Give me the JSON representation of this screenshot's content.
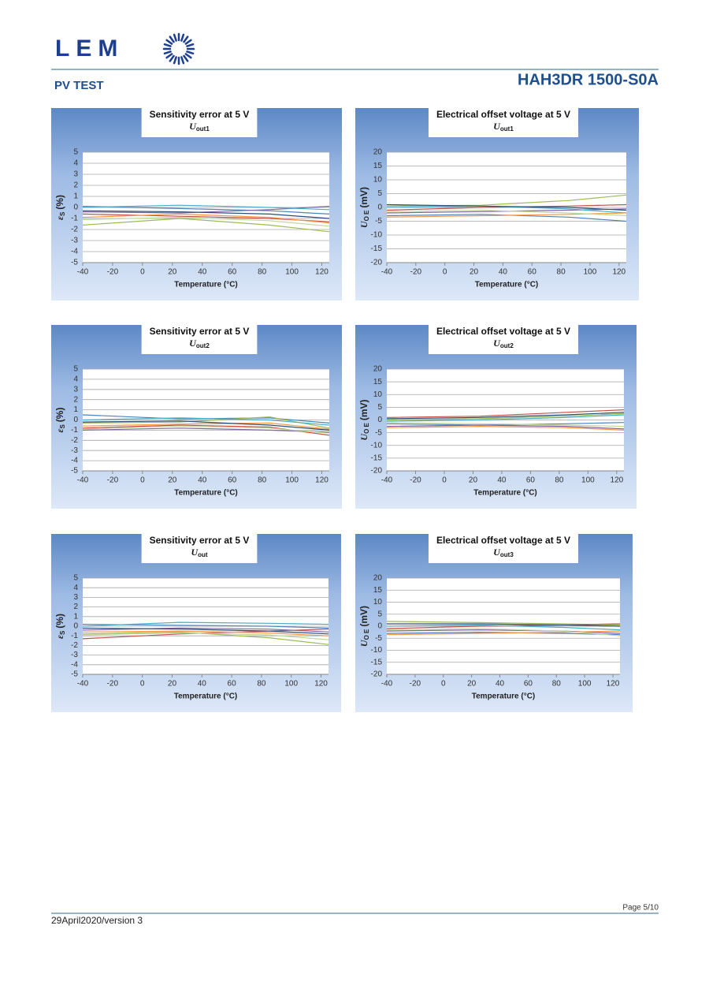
{
  "header": {
    "logo": "LEM",
    "section": "PV TEST",
    "product": "HAH3DR 1500-S0A"
  },
  "chart_data": [
    {
      "type": "line",
      "title": "Sensitivity error at 5 V",
      "subtitle": "U",
      "subtitle_sub": "out1",
      "ylabel": {
        "symbol": "ε",
        "sub": "S",
        "unit": "(%)"
      },
      "xlabel": "Temperature (°C)",
      "x": [
        -40,
        25,
        85,
        125
      ],
      "xlim": [
        -40,
        125
      ],
      "xticks": [
        -40,
        -20,
        0,
        20,
        40,
        60,
        80,
        100,
        120
      ],
      "ylim": [
        -5,
        5
      ],
      "yticks": [
        -5,
        -4,
        -3,
        -2,
        -1,
        0,
        1,
        2,
        3,
        4,
        5
      ],
      "grid": true,
      "series": [
        {
          "color": "#4f81bd",
          "values": [
            0.1,
            -0.1,
            -0.3,
            -0.6
          ]
        },
        {
          "color": "#c0504d",
          "values": [
            -0.6,
            -0.8,
            -1.0,
            -1.3
          ]
        },
        {
          "color": "#9bbb59",
          "values": [
            -1.6,
            -1.0,
            -1.6,
            -2.2
          ]
        },
        {
          "color": "#8064a2",
          "values": [
            -0.4,
            -0.5,
            -0.2,
            0.1
          ]
        },
        {
          "color": "#4bacc6",
          "values": [
            0.0,
            0.2,
            0.0,
            -0.2
          ]
        },
        {
          "color": "#f79646",
          "values": [
            -0.9,
            -0.6,
            -0.9,
            -1.4
          ]
        },
        {
          "color": "#2c4d75",
          "values": [
            -0.3,
            -0.4,
            -0.6,
            -1.0
          ]
        },
        {
          "color": "#c3d69b",
          "values": [
            -1.1,
            -0.9,
            -1.2,
            -1.7
          ]
        }
      ]
    },
    {
      "type": "line",
      "title": "Electrical offset voltage at 5 V",
      "subtitle": "U",
      "subtitle_sub": "out1",
      "ylabel": {
        "symbol": "U",
        "sub": "O E",
        "unit": "(mV)"
      },
      "xlabel": "Temperature (°C)",
      "x": [
        -40,
        25,
        85,
        125
      ],
      "xlim": [
        -40,
        125
      ],
      "xticks": [
        -40,
        -20,
        0,
        20,
        40,
        60,
        80,
        100,
        120
      ],
      "ylim": [
        -20,
        20
      ],
      "yticks": [
        -20,
        -15,
        -10,
        -5,
        0,
        5,
        10,
        15,
        20
      ],
      "grid": true,
      "series": [
        {
          "color": "#9bbb59",
          "values": [
            0.5,
            0.8,
            2.5,
            4.5
          ]
        },
        {
          "color": "#4f81bd",
          "values": [
            -3,
            -2.5,
            -3.5,
            -5
          ]
        },
        {
          "color": "#c0504d",
          "values": [
            -1,
            0,
            0.5,
            1
          ]
        },
        {
          "color": "#8064a2",
          "values": [
            -2,
            -1.5,
            -1,
            -0.5
          ]
        },
        {
          "color": "#4bacc6",
          "values": [
            0,
            0.5,
            -0.5,
            -2
          ]
        },
        {
          "color": "#f79646",
          "values": [
            -3.5,
            -3,
            -2.5,
            -2
          ]
        },
        {
          "color": "#2c4d75",
          "values": [
            1,
            0.5,
            0,
            -1
          ]
        },
        {
          "color": "#c3d69b",
          "values": [
            -1.5,
            -1,
            -2,
            -3
          ]
        }
      ]
    },
    {
      "type": "line",
      "title": "Sensitivity error at 5 V",
      "subtitle": "U",
      "subtitle_sub": "out2",
      "ylabel": {
        "symbol": "ε",
        "sub": "S",
        "unit": "(%)"
      },
      "xlabel": "Temperature (°C)",
      "x": [
        -40,
        25,
        85,
        125
      ],
      "xlim": [
        -40,
        125
      ],
      "xticks": [
        -40,
        -20,
        0,
        20,
        40,
        60,
        80,
        100,
        120
      ],
      "ylim": [
        -5,
        5
      ],
      "yticks": [
        -5,
        -4,
        -3,
        -2,
        -1,
        0,
        1,
        2,
        3,
        4,
        5
      ],
      "grid": true,
      "series": [
        {
          "color": "#4f81bd",
          "values": [
            0.5,
            0.1,
            0.2,
            -0.3
          ]
        },
        {
          "color": "#c0504d",
          "values": [
            -0.8,
            -0.5,
            -0.7,
            -1.5
          ]
        },
        {
          "color": "#9bbb59",
          "values": [
            -0.3,
            -0.2,
            0.3,
            -0.8
          ]
        },
        {
          "color": "#8064a2",
          "values": [
            -1.0,
            -0.8,
            -1.0,
            -1.2
          ]
        },
        {
          "color": "#4bacc6",
          "values": [
            0,
            0.2,
            0,
            -0.5
          ]
        },
        {
          "color": "#f79646",
          "values": [
            -0.6,
            -0.4,
            -0.3,
            -0.9
          ]
        },
        {
          "color": "#2c4d75",
          "values": [
            -0.2,
            -0.1,
            -0.5,
            -1.0
          ]
        },
        {
          "color": "#c3d69b",
          "values": [
            -0.9,
            -0.6,
            -0.8,
            -1.3
          ]
        }
      ]
    },
    {
      "type": "line",
      "title": "Electrical offset voltage at 5 V",
      "subtitle": "U",
      "subtitle_sub": "out2",
      "ylabel": {
        "symbol": "U",
        "sub": "O E",
        "unit": "(mV)"
      },
      "xlabel": "Temperature (°C)",
      "x": [
        -40,
        25,
        85,
        125
      ],
      "xlim": [
        -40,
        125
      ],
      "xticks": [
        -40,
        -20,
        0,
        20,
        40,
        60,
        80,
        100,
        120
      ],
      "ylim": [
        -20,
        20
      ],
      "yticks": [
        -20,
        -15,
        -10,
        -5,
        0,
        5,
        10,
        15,
        20
      ],
      "grid": true,
      "series": [
        {
          "color": "#c0504d",
          "values": [
            1,
            1.5,
            3,
            4
          ]
        },
        {
          "color": "#4f81bd",
          "values": [
            -1.5,
            -2,
            -1.5,
            -1
          ]
        },
        {
          "color": "#9bbb59",
          "values": [
            0,
            0.5,
            1.5,
            2.5
          ]
        },
        {
          "color": "#8064a2",
          "values": [
            -2.5,
            -2,
            -2.5,
            -3.5
          ]
        },
        {
          "color": "#4bacc6",
          "values": [
            -0.5,
            0,
            1,
            2
          ]
        },
        {
          "color": "#f79646",
          "values": [
            -3,
            -2.5,
            -3,
            -4
          ]
        },
        {
          "color": "#2c4d75",
          "values": [
            0.5,
            1,
            2,
            3
          ]
        },
        {
          "color": "#c3d69b",
          "values": [
            -1,
            -1.5,
            -2,
            -2.5
          ]
        }
      ]
    },
    {
      "type": "line",
      "title": "Sensitivity error at 5 V",
      "subtitle": "U",
      "subtitle_sub": "out",
      "ylabel": {
        "symbol": "ε",
        "sub": "S",
        "unit": "(%)"
      },
      "xlabel": "Temperature (°C)",
      "x": [
        -40,
        25,
        85,
        125
      ],
      "xlim": [
        -40,
        125
      ],
      "xticks": [
        -40,
        -20,
        0,
        20,
        40,
        60,
        80,
        100,
        120
      ],
      "ylim": [
        -5,
        5
      ],
      "yticks": [
        -5,
        -4,
        -3,
        -2,
        -1,
        0,
        1,
        2,
        3,
        4,
        5
      ],
      "grid": true,
      "series": [
        {
          "color": "#4f81bd",
          "values": [
            0.2,
            0.1,
            0,
            -0.2
          ]
        },
        {
          "color": "#c0504d",
          "values": [
            -1.3,
            -0.8,
            -0.5,
            -0.3
          ]
        },
        {
          "color": "#9bbb59",
          "values": [
            -0.8,
            -0.6,
            -1.2,
            -1.9
          ]
        },
        {
          "color": "#8064a2",
          "values": [
            -0.4,
            -0.2,
            -0.3,
            -0.6
          ]
        },
        {
          "color": "#4bacc6",
          "values": [
            0,
            0.4,
            0.3,
            0.2
          ]
        },
        {
          "color": "#f79646",
          "values": [
            -0.6,
            -0.5,
            -0.7,
            -1.0
          ]
        },
        {
          "color": "#2c4d75",
          "values": [
            -0.2,
            -0.3,
            -0.5,
            -0.8
          ]
        },
        {
          "color": "#c3d69b",
          "values": [
            -0.9,
            -0.7,
            -0.9,
            -1.4
          ]
        }
      ]
    },
    {
      "type": "line",
      "title": "Electrical offset voltage at 5 V",
      "subtitle": "U",
      "subtitle_sub": "out3",
      "ylabel": {
        "symbol": "U",
        "sub": "O E",
        "unit": "(mV)"
      },
      "xlabel": "Temperature (°C)",
      "x": [
        -40,
        25,
        85,
        125
      ],
      "xlim": [
        -40,
        125
      ],
      "xticks": [
        -40,
        -20,
        0,
        20,
        40,
        60,
        80,
        100,
        120
      ],
      "ylim": [
        -20,
        20
      ],
      "yticks": [
        -20,
        -15,
        -10,
        -5,
        0,
        5,
        10,
        15,
        20
      ],
      "grid": true,
      "series": [
        {
          "color": "#9bbb59",
          "values": [
            2,
            1.5,
            1,
            0.5
          ]
        },
        {
          "color": "#4f81bd",
          "values": [
            -3,
            -2.5,
            -3,
            -3.5
          ]
        },
        {
          "color": "#c0504d",
          "values": [
            -1,
            0,
            0.5,
            1
          ]
        },
        {
          "color": "#8064a2",
          "values": [
            -2,
            -1.5,
            -2,
            -3
          ]
        },
        {
          "color": "#4bacc6",
          "values": [
            0,
            0.5,
            -0.5,
            -1.5
          ]
        },
        {
          "color": "#f79646",
          "values": [
            -3.5,
            -3,
            -2.5,
            -2
          ]
        },
        {
          "color": "#2c4d75",
          "values": [
            1,
            1,
            0.5,
            0
          ]
        },
        {
          "color": "#c3d69b",
          "values": [
            -1.5,
            -1,
            -2,
            -4
          ]
        }
      ]
    }
  ],
  "footer": {
    "page": "Page 5/10",
    "date": "29April2020/version 3"
  }
}
